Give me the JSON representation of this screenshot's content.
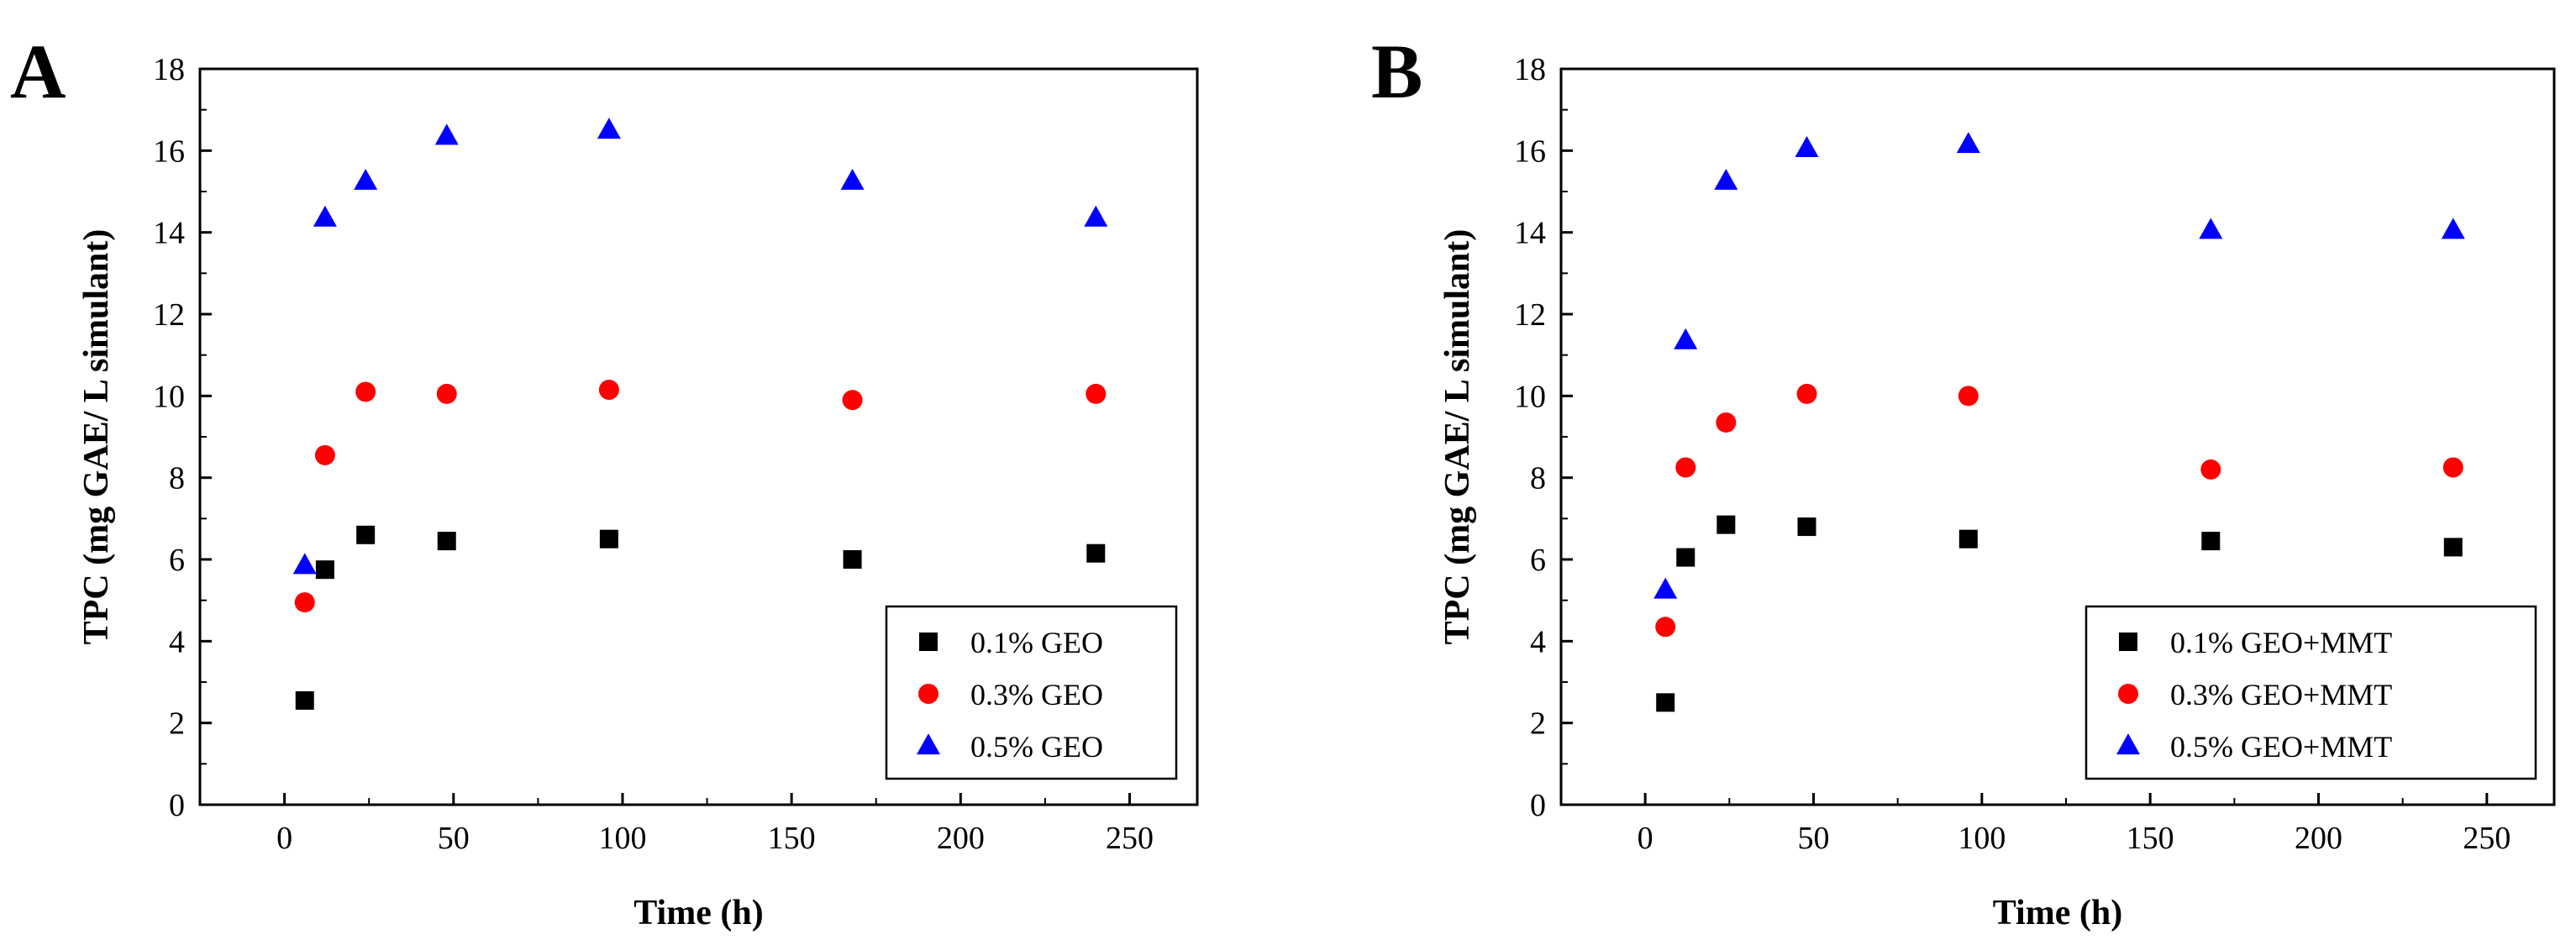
{
  "chart_data": [
    {
      "type": "scatter",
      "panel_label": "A",
      "xlabel": "Time (h)",
      "ylabel": "TPC (mg GAE/ L simulant)",
      "xlim": [
        -25,
        270
      ],
      "ylim": [
        0,
        18
      ],
      "xticks": [
        0,
        50,
        100,
        150,
        200,
        250
      ],
      "yticks": [
        0,
        2,
        4,
        6,
        8,
        10,
        12,
        14,
        16,
        18
      ],
      "grid": false,
      "legend_position": "bottom-right",
      "series": [
        {
          "name": "0.1% GEO",
          "marker": "square",
          "color": "#000000",
          "x": [
            6,
            12,
            24,
            48,
            96,
            168,
            240
          ],
          "y": [
            2.55,
            5.75,
            6.6,
            6.45,
            6.5,
            6.0,
            6.15
          ]
        },
        {
          "name": "0.3% GEO",
          "marker": "circle",
          "color": "#ff0000",
          "x": [
            6,
            12,
            24,
            48,
            96,
            168,
            240
          ],
          "y": [
            4.95,
            8.55,
            10.1,
            10.05,
            10.15,
            9.9,
            10.05
          ]
        },
        {
          "name": "0.5% GEO",
          "marker": "triangle",
          "color": "#0000ff",
          "x": [
            6,
            12,
            24,
            48,
            96,
            168,
            240
          ],
          "y": [
            5.85,
            14.35,
            15.25,
            16.35,
            16.5,
            15.25,
            14.35
          ]
        }
      ]
    },
    {
      "type": "scatter",
      "panel_label": "B",
      "xlabel": "Time (h)",
      "ylabel": "TPC (mg GAE/ L simulant)",
      "xlim": [
        -25,
        270
      ],
      "ylim": [
        0,
        18
      ],
      "xticks": [
        0,
        50,
        100,
        150,
        200,
        250
      ],
      "yticks": [
        0,
        2,
        4,
        6,
        8,
        10,
        12,
        14,
        16,
        18
      ],
      "grid": false,
      "legend_position": "bottom-right",
      "series": [
        {
          "name": "0.1% GEO+MMT",
          "marker": "square",
          "color": "#000000",
          "x": [
            6,
            12,
            24,
            48,
            96,
            168,
            240
          ],
          "y": [
            2.5,
            6.05,
            6.85,
            6.8,
            6.5,
            6.45,
            6.3
          ]
        },
        {
          "name": "0.3% GEO+MMT",
          "marker": "circle",
          "color": "#ff0000",
          "x": [
            6,
            12,
            24,
            48,
            96,
            168,
            240
          ],
          "y": [
            4.35,
            8.25,
            9.35,
            10.05,
            10.0,
            8.2,
            8.25
          ]
        },
        {
          "name": "0.5% GEO+MMT",
          "marker": "triangle",
          "color": "#0000ff",
          "x": [
            6,
            12,
            24,
            48,
            96,
            168,
            240
          ],
          "y": [
            5.25,
            11.35,
            15.25,
            16.05,
            16.15,
            14.05,
            14.05
          ]
        }
      ]
    }
  ]
}
